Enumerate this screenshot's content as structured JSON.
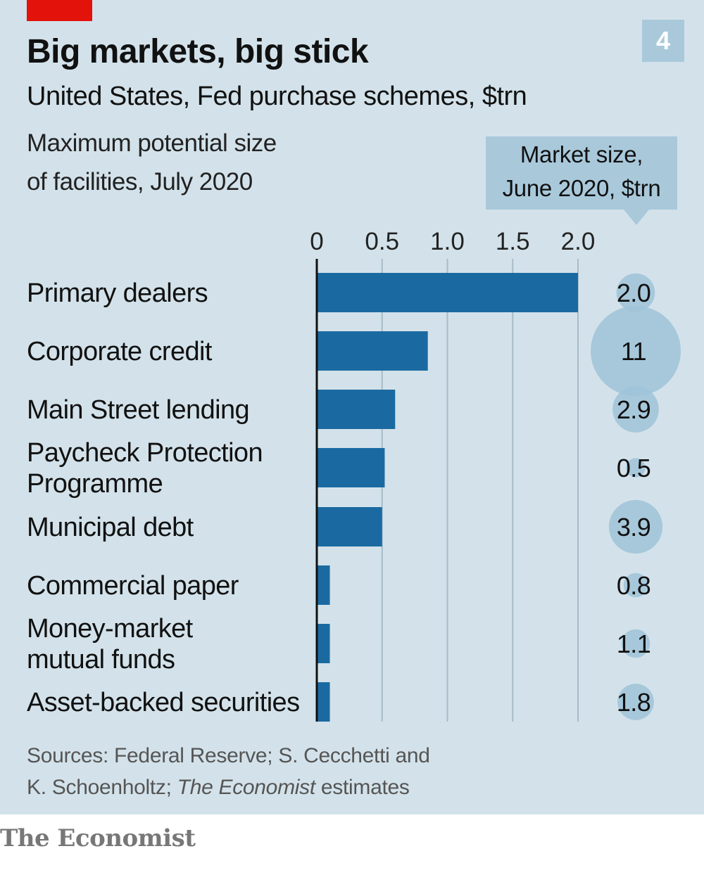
{
  "badge": "4",
  "title": "Big markets, big stick",
  "subtitle": "United States, Fed purchase schemes, $trn",
  "description": [
    "Maximum potential size",
    "of facilities, July 2020"
  ],
  "market_box": [
    "Market size,",
    "June 2020, $trn"
  ],
  "source": {
    "line1": "Sources: Federal Reserve; S. Cecchetti and",
    "line2_prefix": "K. Schoenholtz; ",
    "line2_italic": "The Economist",
    "line2_suffix": " estimates"
  },
  "brand": "The Economist",
  "colors": {
    "background": "#d3e2ea",
    "bar": "#1a6aa1",
    "bubble": "#9fc3d8",
    "accent_red": "#e3120b",
    "label_box": "#a9c9db"
  },
  "chart_data": {
    "type": "bar",
    "orientation": "horizontal",
    "title": "Maximum potential size of facilities, July 2020",
    "xlim": [
      0,
      2.0
    ],
    "xticks": [
      0,
      0.5,
      1.0,
      1.5,
      2.0
    ],
    "xtick_labels": [
      "0",
      "0.5",
      "1.0",
      "1.5",
      "2.0"
    ],
    "categories": [
      [
        "Primary dealers"
      ],
      [
        "Corporate credit"
      ],
      [
        "Main Street lending"
      ],
      [
        "Paycheck Protection",
        "Programme"
      ],
      [
        "Municipal debt"
      ],
      [
        "Commercial paper"
      ],
      [
        "Money-market",
        "mutual funds"
      ],
      [
        "Asset-backed securities"
      ]
    ],
    "values": [
      2.0,
      0.85,
      0.6,
      0.52,
      0.5,
      0.1,
      0.1,
      0.1
    ],
    "market_size": {
      "label": "Market size, June 2020, $trn",
      "values": [
        2.0,
        11,
        2.9,
        0.5,
        3.9,
        0.8,
        1.1,
        1.8
      ],
      "labels": [
        "2.0",
        "11",
        "2.9",
        "0.5",
        "3.9",
        "0.8",
        "1.1",
        "1.8"
      ]
    }
  }
}
